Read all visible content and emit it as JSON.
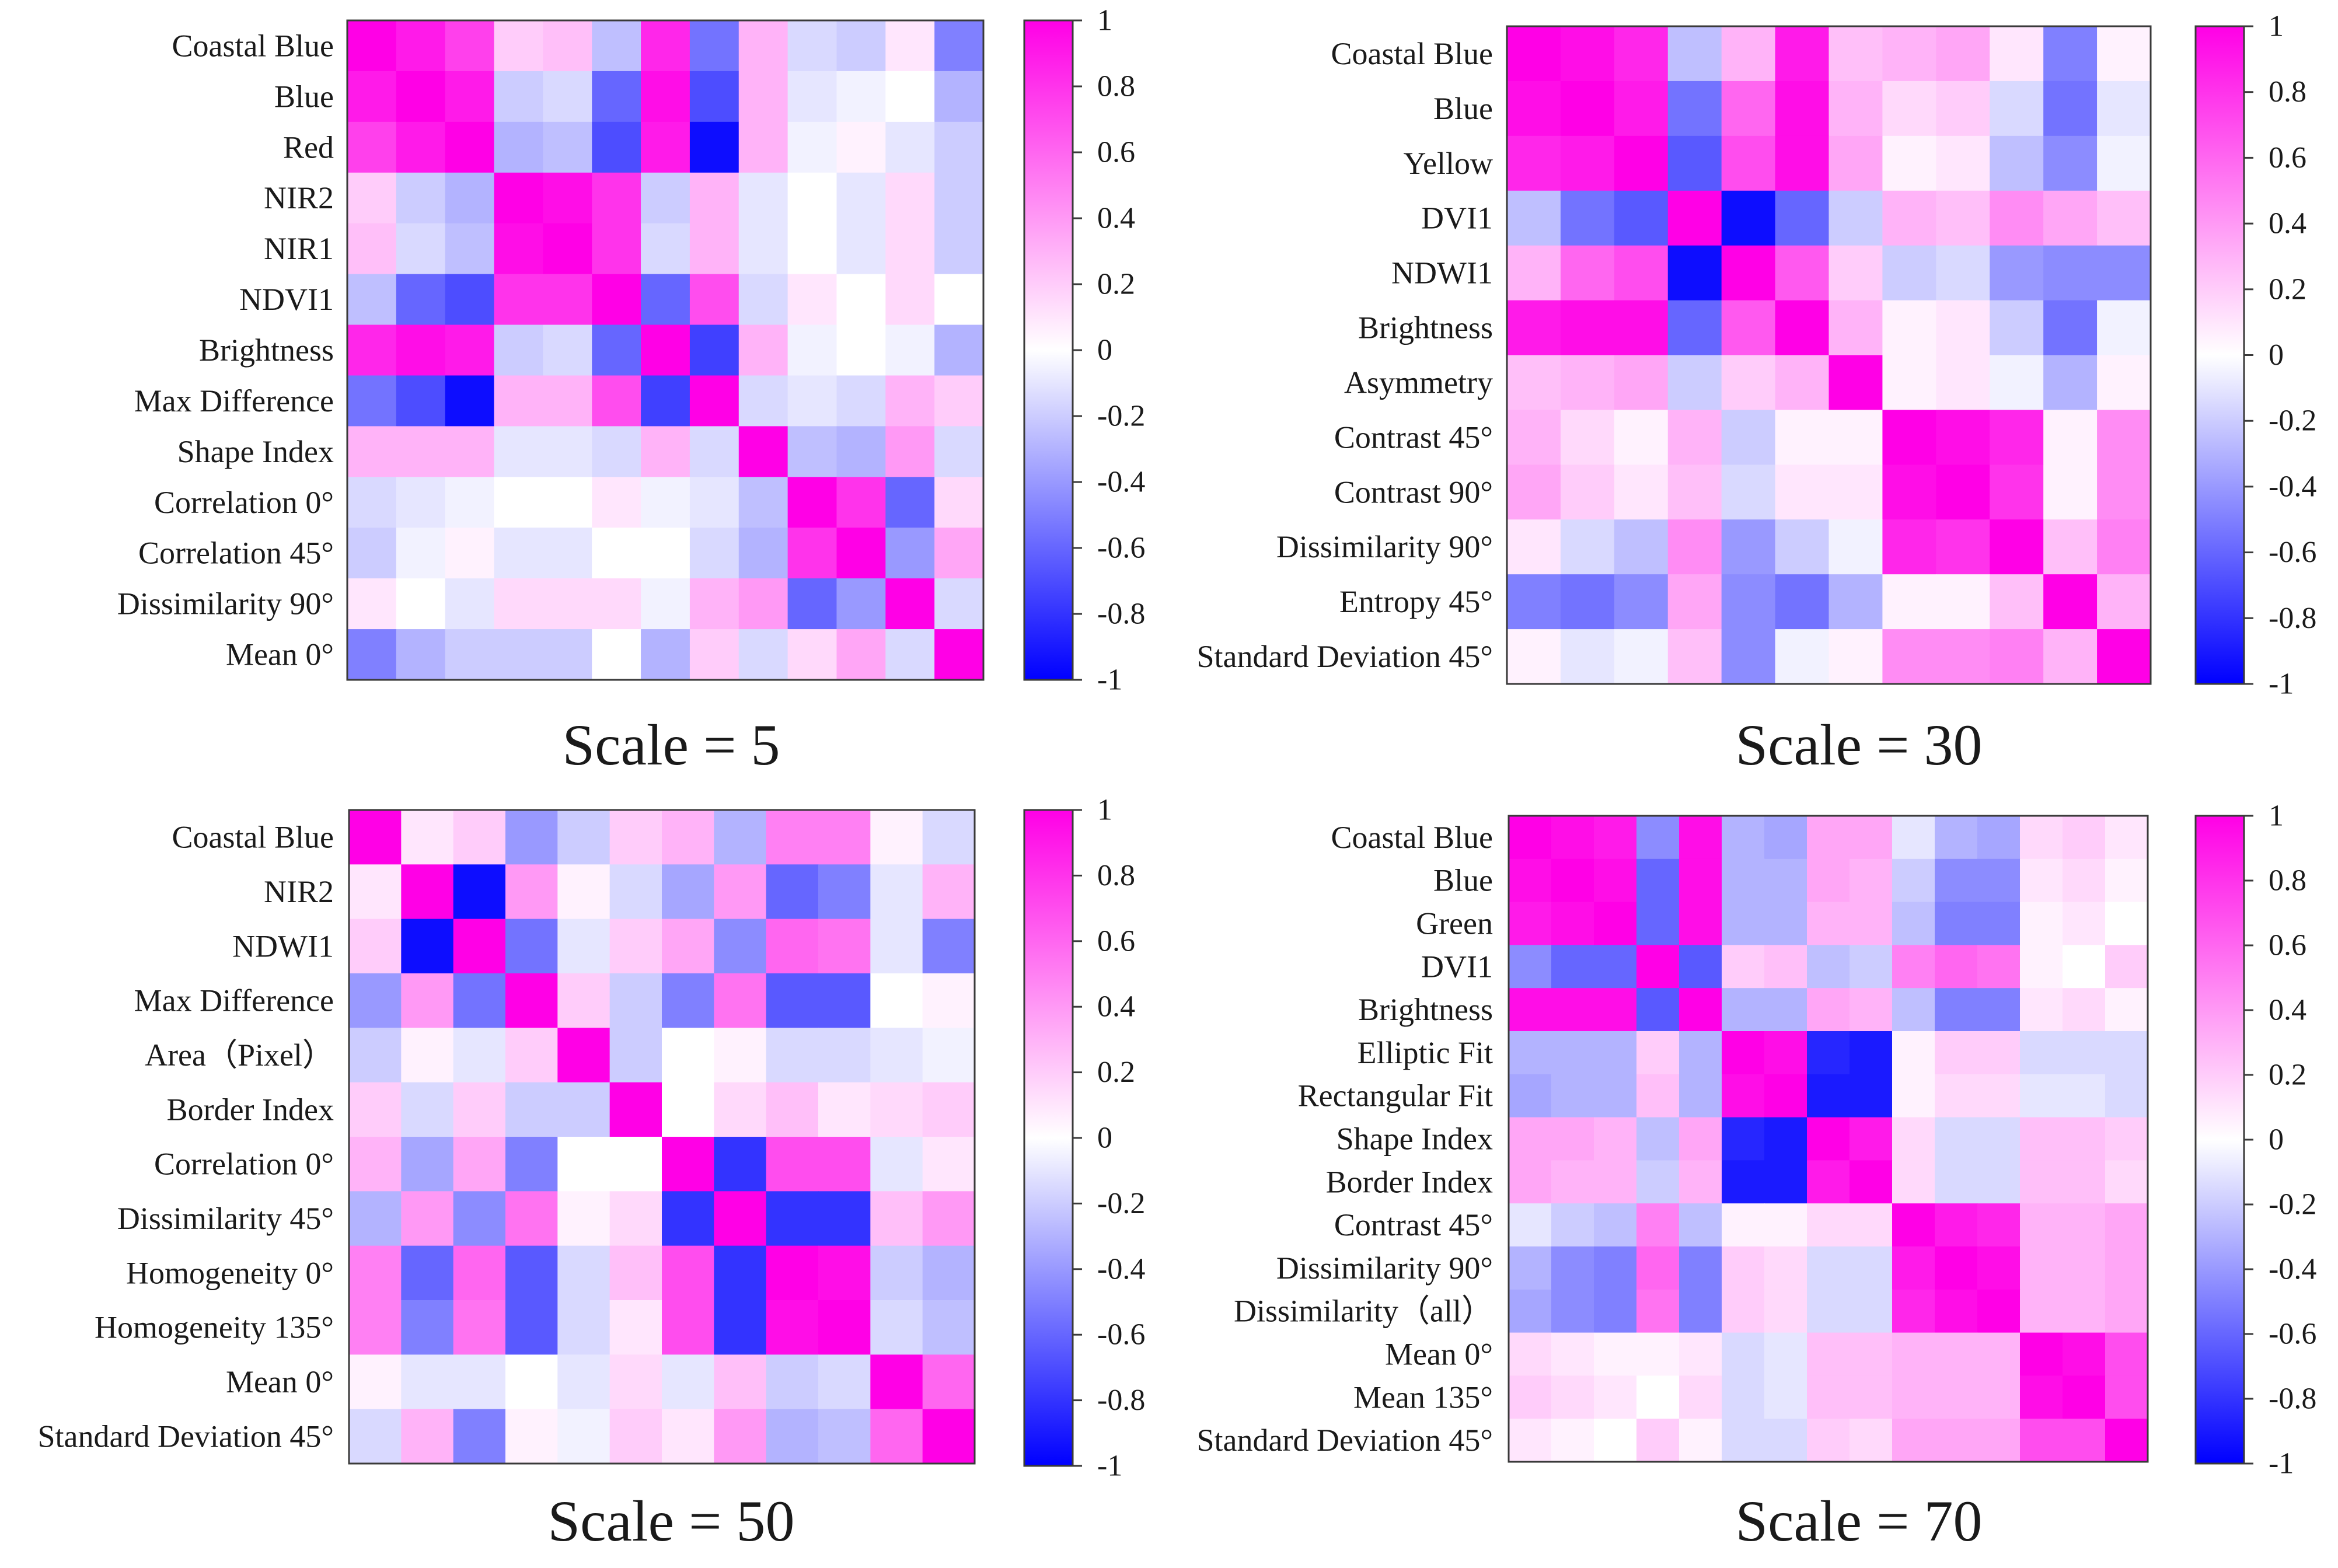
{
  "colors": {
    "negative": "#0000ff",
    "neutral": "#ffffff",
    "positive": "#ff00e6",
    "frame": "#3a3a3a",
    "text": "#1a1a1a"
  },
  "chart_data": [
    {
      "type": "heatmap",
      "title": "Scale = 5",
      "labels": [
        "Coastal Blue",
        "Blue",
        "Red",
        "NIR2",
        "NIR1",
        "NDVI1",
        "Brightness",
        "Max Difference",
        "Shape Index",
        "Correlation 0°",
        "Correlation 45°",
        "Dissimilarity 90°",
        "Mean 0°"
      ],
      "colorbar": {
        "range": [
          -1,
          1
        ],
        "ticks": [
          -1,
          -0.8,
          -0.6,
          -0.4,
          -0.2,
          0,
          0.2,
          0.4,
          0.6,
          0.8,
          1
        ],
        "tick_labels": [
          "-1",
          "-0.8",
          "-0.6",
          "-0.4",
          "-0.2",
          "0",
          "0.2",
          "0.4",
          "0.6",
          "0.8",
          "1"
        ]
      },
      "values": [
        [
          1.0,
          0.9,
          0.75,
          0.2,
          0.25,
          -0.25,
          0.85,
          -0.55,
          0.3,
          -0.15,
          -0.2,
          0.1,
          -0.5
        ],
        [
          0.9,
          1.0,
          0.9,
          -0.2,
          -0.15,
          -0.6,
          0.95,
          -0.7,
          0.3,
          -0.1,
          -0.05,
          0.0,
          -0.3
        ],
        [
          0.75,
          0.9,
          1.0,
          -0.3,
          -0.25,
          -0.7,
          0.9,
          -0.95,
          0.3,
          -0.05,
          0.05,
          -0.1,
          -0.2
        ],
        [
          0.2,
          -0.2,
          -0.3,
          1.0,
          0.95,
          0.8,
          -0.2,
          0.3,
          -0.1,
          0.0,
          -0.1,
          0.15,
          -0.2
        ],
        [
          0.25,
          -0.15,
          -0.25,
          0.95,
          1.0,
          0.8,
          -0.15,
          0.3,
          -0.1,
          0.0,
          -0.1,
          0.15,
          -0.2
        ],
        [
          -0.25,
          -0.6,
          -0.7,
          0.8,
          0.8,
          1.0,
          -0.6,
          0.7,
          -0.15,
          0.1,
          0.0,
          0.15,
          0.0
        ],
        [
          0.85,
          0.95,
          0.9,
          -0.2,
          -0.15,
          -0.6,
          1.0,
          -0.75,
          0.3,
          -0.05,
          0.0,
          -0.05,
          -0.3
        ],
        [
          -0.55,
          -0.7,
          -0.95,
          0.3,
          0.3,
          0.7,
          -0.75,
          1.0,
          -0.15,
          -0.1,
          -0.15,
          0.3,
          0.2
        ],
        [
          0.3,
          0.3,
          0.3,
          -0.1,
          -0.1,
          -0.15,
          0.3,
          -0.15,
          1.0,
          -0.25,
          -0.3,
          0.4,
          -0.15
        ],
        [
          -0.15,
          -0.1,
          -0.05,
          0.0,
          0.0,
          0.1,
          -0.05,
          -0.1,
          -0.25,
          1.0,
          0.8,
          -0.6,
          0.15
        ],
        [
          -0.2,
          -0.05,
          0.05,
          -0.1,
          -0.1,
          0.0,
          0.0,
          -0.15,
          -0.3,
          0.8,
          1.0,
          -0.4,
          0.35
        ],
        [
          0.1,
          0.0,
          -0.1,
          0.15,
          0.15,
          0.15,
          -0.05,
          0.3,
          0.4,
          -0.6,
          -0.4,
          1.0,
          -0.15
        ],
        [
          -0.5,
          -0.3,
          -0.2,
          -0.2,
          -0.2,
          0.0,
          -0.3,
          0.2,
          -0.15,
          0.15,
          0.35,
          -0.15,
          1.0
        ]
      ]
    },
    {
      "type": "heatmap",
      "title": "Scale = 30",
      "labels": [
        "Coastal Blue",
        "Blue",
        "Yellow",
        "DVI1",
        "NDWI1",
        "Brightness",
        "Asymmetry",
        "Contrast 45°",
        "Contrast 90°",
        "Dissimilarity 90°",
        "Entropy 45°",
        "Standard Deviation 45°"
      ],
      "colorbar": {
        "range": [
          -1,
          1
        ],
        "ticks": [
          -1,
          -0.8,
          -0.6,
          -0.4,
          -0.2,
          0,
          0.2,
          0.4,
          0.6,
          0.8,
          1
        ],
        "tick_labels": [
          "-1",
          "-0.8",
          "-0.6",
          "-0.4",
          "-0.2",
          "0",
          "0.2",
          "0.4",
          "0.6",
          "0.8",
          "1"
        ]
      },
      "values": [
        [
          1.0,
          0.95,
          0.85,
          -0.25,
          0.3,
          0.9,
          0.25,
          0.3,
          0.35,
          0.1,
          -0.5,
          0.05
        ],
        [
          0.95,
          1.0,
          0.9,
          -0.55,
          0.6,
          0.95,
          0.3,
          0.15,
          0.2,
          -0.15,
          -0.55,
          -0.1
        ],
        [
          0.85,
          0.9,
          1.0,
          -0.65,
          0.7,
          0.95,
          0.35,
          0.05,
          0.1,
          -0.25,
          -0.45,
          -0.05
        ],
        [
          -0.25,
          -0.55,
          -0.65,
          1.0,
          -0.95,
          -0.6,
          -0.2,
          0.3,
          0.25,
          0.45,
          0.35,
          0.25
        ],
        [
          0.3,
          0.6,
          0.7,
          -0.95,
          1.0,
          0.65,
          0.2,
          -0.2,
          -0.15,
          -0.4,
          -0.45,
          -0.45
        ],
        [
          0.9,
          0.95,
          0.95,
          -0.6,
          0.65,
          1.0,
          0.3,
          0.05,
          0.1,
          -0.2,
          -0.55,
          -0.05
        ],
        [
          0.25,
          0.3,
          0.35,
          -0.2,
          0.2,
          0.3,
          1.0,
          0.05,
          0.1,
          -0.05,
          -0.3,
          0.05
        ],
        [
          0.3,
          0.15,
          0.05,
          0.3,
          -0.2,
          0.05,
          0.05,
          1.0,
          0.95,
          0.85,
          0.05,
          0.45
        ],
        [
          0.35,
          0.2,
          0.1,
          0.25,
          -0.15,
          0.1,
          0.1,
          0.95,
          1.0,
          0.8,
          0.05,
          0.45
        ],
        [
          0.1,
          -0.15,
          -0.25,
          0.45,
          -0.4,
          -0.2,
          -0.05,
          0.85,
          0.8,
          1.0,
          0.25,
          0.5
        ],
        [
          -0.5,
          -0.55,
          -0.45,
          0.35,
          -0.45,
          -0.55,
          -0.3,
          0.05,
          0.05,
          0.25,
          1.0,
          0.3
        ],
        [
          0.05,
          -0.1,
          -0.05,
          0.25,
          -0.45,
          -0.05,
          0.05,
          0.45,
          0.45,
          0.5,
          0.3,
          1.0
        ]
      ]
    },
    {
      "type": "heatmap",
      "title": "Scale = 50",
      "labels": [
        "Coastal Blue",
        "NIR2",
        "NDWI1",
        "Max Difference",
        "Area（Pixel）",
        "Border Index",
        "Correlation 0°",
        "Dissimilarity 45°",
        "Homogeneity 0°",
        "Homogeneity 135°",
        "Mean 0°",
        "Standard Deviation 45°"
      ],
      "colorbar": {
        "range": [
          -1,
          1
        ],
        "ticks": [
          -1,
          -0.8,
          -0.6,
          -0.4,
          -0.2,
          0,
          0.2,
          0.4,
          0.6,
          0.8,
          1
        ],
        "tick_labels": [
          "-1",
          "-0.8",
          "-0.6",
          "-0.4",
          "-0.2",
          "0",
          "0.2",
          "0.4",
          "0.6",
          "0.8",
          "1"
        ]
      },
      "values": [
        [
          1.0,
          0.1,
          0.2,
          -0.4,
          -0.2,
          0.2,
          0.3,
          -0.3,
          0.5,
          0.5,
          0.05,
          -0.15
        ],
        [
          0.1,
          1.0,
          -0.95,
          0.4,
          0.05,
          -0.15,
          -0.35,
          0.4,
          -0.6,
          -0.5,
          -0.1,
          0.3
        ],
        [
          0.2,
          -0.95,
          1.0,
          -0.55,
          -0.1,
          0.2,
          0.35,
          -0.45,
          0.6,
          0.55,
          -0.1,
          -0.5
        ],
        [
          -0.4,
          0.4,
          -0.55,
          1.0,
          0.2,
          -0.2,
          -0.5,
          0.55,
          -0.65,
          -0.65,
          0.0,
          0.05
        ],
        [
          -0.2,
          0.05,
          -0.1,
          0.2,
          1.0,
          -0.2,
          0.0,
          0.05,
          -0.15,
          -0.15,
          -0.1,
          -0.05
        ],
        [
          0.2,
          -0.15,
          0.2,
          -0.2,
          -0.2,
          1.0,
          0.0,
          0.15,
          0.25,
          0.1,
          0.15,
          0.2
        ],
        [
          0.3,
          -0.35,
          0.35,
          -0.5,
          0.0,
          0.0,
          1.0,
          -0.8,
          0.7,
          0.7,
          -0.1,
          0.1
        ],
        [
          -0.3,
          0.4,
          -0.45,
          0.55,
          0.05,
          0.15,
          -0.8,
          1.0,
          -0.8,
          -0.8,
          0.25,
          0.4
        ],
        [
          0.5,
          -0.6,
          0.6,
          -0.65,
          -0.15,
          0.25,
          0.7,
          -0.8,
          1.0,
          0.95,
          -0.2,
          -0.3
        ],
        [
          0.5,
          -0.5,
          0.55,
          -0.65,
          -0.15,
          0.1,
          0.7,
          -0.8,
          0.95,
          1.0,
          -0.15,
          -0.25
        ],
        [
          0.05,
          -0.1,
          -0.1,
          0.0,
          -0.1,
          0.15,
          -0.1,
          0.25,
          -0.2,
          -0.15,
          1.0,
          0.6
        ],
        [
          -0.15,
          0.3,
          -0.5,
          0.05,
          -0.05,
          0.2,
          0.1,
          0.4,
          -0.3,
          -0.25,
          0.6,
          1.0
        ]
      ]
    },
    {
      "type": "heatmap",
      "title": "Scale = 70",
      "labels": [
        "Coastal Blue",
        "Blue",
        "Green",
        "DVI1",
        "Brightness",
        "Elliptic Fit",
        "Rectangular Fit",
        "Shape Index",
        "Border Index",
        "Contrast 45°",
        "Dissimilarity 90°",
        "Dissimilarity（all）",
        "Mean 0°",
        "Mean 135°",
        "Standard Deviation 45°"
      ],
      "colorbar": {
        "range": [
          -1,
          1
        ],
        "ticks": [
          -1,
          -0.8,
          -0.6,
          -0.4,
          -0.2,
          0,
          0.2,
          0.4,
          0.6,
          0.8,
          1
        ],
        "tick_labels": [
          "-1",
          "-0.8",
          "-0.6",
          "-0.4",
          "-0.2",
          "0",
          "0.2",
          "0.4",
          "0.6",
          "0.8",
          "1"
        ]
      },
      "values": [
        [
          1.0,
          0.95,
          0.9,
          -0.45,
          0.95,
          -0.3,
          -0.35,
          0.35,
          0.35,
          -0.1,
          -0.3,
          -0.35,
          0.15,
          0.2,
          0.1
        ],
        [
          0.95,
          1.0,
          0.95,
          -0.6,
          0.95,
          -0.3,
          -0.3,
          0.35,
          0.3,
          -0.2,
          -0.45,
          -0.45,
          0.1,
          0.15,
          0.05
        ],
        [
          0.9,
          0.95,
          1.0,
          -0.6,
          0.95,
          -0.3,
          -0.3,
          0.3,
          0.3,
          -0.25,
          -0.5,
          -0.5,
          0.05,
          0.1,
          0.0
        ],
        [
          -0.45,
          -0.6,
          -0.6,
          1.0,
          -0.65,
          0.2,
          0.25,
          -0.25,
          -0.2,
          0.5,
          0.6,
          0.55,
          0.05,
          0.0,
          0.2
        ],
        [
          0.95,
          0.95,
          0.95,
          -0.65,
          1.0,
          -0.3,
          -0.3,
          0.35,
          0.3,
          -0.25,
          -0.5,
          -0.5,
          0.1,
          0.15,
          0.05
        ],
        [
          -0.3,
          -0.3,
          -0.3,
          0.2,
          -0.3,
          1.0,
          0.95,
          -0.85,
          -0.9,
          0.05,
          0.2,
          0.2,
          -0.15,
          -0.15,
          -0.15
        ],
        [
          -0.35,
          -0.3,
          -0.3,
          0.25,
          -0.3,
          0.95,
          1.0,
          -0.9,
          -0.9,
          0.05,
          0.15,
          0.15,
          -0.1,
          -0.1,
          -0.15
        ],
        [
          0.35,
          0.35,
          0.3,
          -0.25,
          0.35,
          -0.85,
          -0.9,
          1.0,
          0.9,
          0.15,
          -0.15,
          -0.15,
          0.25,
          0.25,
          0.2
        ],
        [
          0.35,
          0.3,
          0.3,
          -0.2,
          0.3,
          -0.9,
          -0.9,
          0.9,
          1.0,
          0.15,
          -0.15,
          -0.15,
          0.25,
          0.25,
          0.15
        ],
        [
          -0.1,
          -0.2,
          -0.25,
          0.5,
          -0.25,
          0.05,
          0.05,
          0.15,
          0.15,
          1.0,
          0.9,
          0.85,
          0.3,
          0.3,
          0.35
        ],
        [
          -0.3,
          -0.45,
          -0.5,
          0.6,
          -0.5,
          0.2,
          0.15,
          -0.15,
          -0.15,
          0.9,
          1.0,
          0.95,
          0.3,
          0.3,
          0.35
        ],
        [
          -0.35,
          -0.45,
          -0.5,
          0.55,
          -0.5,
          0.2,
          0.15,
          -0.15,
          -0.15,
          0.85,
          0.95,
          1.0,
          0.3,
          0.3,
          0.35
        ],
        [
          0.15,
          0.1,
          0.05,
          0.05,
          0.1,
          -0.15,
          -0.1,
          0.25,
          0.25,
          0.3,
          0.3,
          0.3,
          1.0,
          0.95,
          0.7
        ],
        [
          0.2,
          0.15,
          0.1,
          0.0,
          0.15,
          -0.15,
          -0.1,
          0.25,
          0.25,
          0.3,
          0.3,
          0.3,
          0.95,
          1.0,
          0.7
        ],
        [
          0.1,
          0.05,
          0.0,
          0.2,
          0.05,
          -0.15,
          -0.15,
          0.2,
          0.15,
          0.35,
          0.35,
          0.35,
          0.7,
          0.7,
          1.0
        ]
      ]
    }
  ]
}
